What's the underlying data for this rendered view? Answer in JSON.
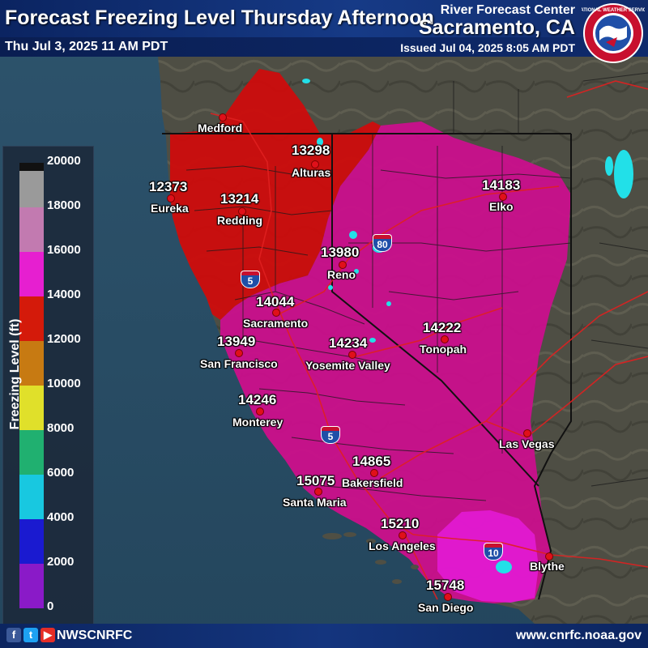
{
  "header": {
    "title": "Forecast Freezing Level Thursday Afternoon",
    "valid_time": "Thu Jul 3, 2025 11 AM PDT",
    "agency_line": "River Forecast Center",
    "office": "Sacramento, CA",
    "issued": "Issued Jul 04, 2025 8:05 AM PDT",
    "logo_text": "NATIONAL WEATHER SERVICE"
  },
  "legend": {
    "title": "Freezing Level (ft)",
    "ticks": [
      "20000",
      "18000",
      "16000",
      "14000",
      "12000",
      "10000",
      "8000",
      "6000",
      "4000",
      "2000",
      "0"
    ]
  },
  "points": [
    {
      "value": "13298",
      "name": "Alturas"
    },
    {
      "value": "12373",
      "name": "Eureka"
    },
    {
      "value": "13214",
      "name": "Redding"
    },
    {
      "value": "14183",
      "name": "Elko"
    },
    {
      "value": "13980",
      "name": "Reno"
    },
    {
      "value": "14044",
      "name": "Sacramento"
    },
    {
      "value": "13949",
      "name": "San Francisco"
    },
    {
      "value": "14234",
      "name": "Yosemite Valley"
    },
    {
      "value": "14222",
      "name": "Tonopah"
    },
    {
      "value": "14246",
      "name": "Monterey"
    },
    {
      "value": "14865",
      "name": "Bakersfield"
    },
    {
      "value": "15075",
      "name": "Santa Maria"
    },
    {
      "value": "15210",
      "name": "Los Angeles"
    },
    {
      "value": "15748",
      "name": "San Diego"
    }
  ],
  "cities": [
    {
      "name": "Medford"
    },
    {
      "name": "Las Vegas"
    },
    {
      "name": "Blythe"
    }
  ],
  "highways": [
    {
      "label": "80"
    },
    {
      "label": "5"
    },
    {
      "label": "5"
    },
    {
      "label": "10"
    }
  ],
  "footer": {
    "handle": "NWSCNRFC",
    "website": "www.cnrfc.noaa.gov",
    "social_icons": [
      "facebook-icon",
      "twitter-icon",
      "youtube-icon"
    ]
  },
  "colors": {
    "ocean": "#2b4e68",
    "land": "#4f4f44",
    "red_zone": "#d40a0a",
    "magenta_zone": "#cc0f8e",
    "bright_magenta": "#e41ad2",
    "title_bar": "#0b2461"
  }
}
